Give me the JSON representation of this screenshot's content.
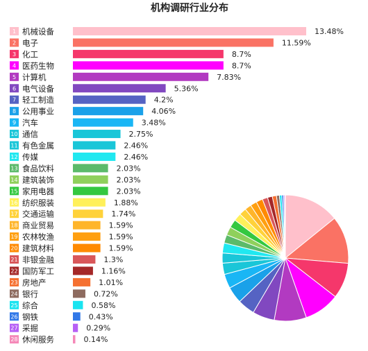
{
  "chart_data": {
    "type": "bar",
    "title": "机构调研行业分布",
    "categories": [
      "机械设备",
      "电子",
      "化工",
      "医药生物",
      "计算机",
      "电气设备",
      "轻工制造",
      "公用事业",
      "汽车",
      "通信",
      "有色金属",
      "传媒",
      "食品饮料",
      "建筑装饰",
      "家用电器",
      "纺织服装",
      "交通运输",
      "商业贸易",
      "农林牧渔",
      "建筑材料",
      "非银金融",
      "国防军工",
      "房地产",
      "银行",
      "综合",
      "钢铁",
      "采掘",
      "休闲服务"
    ],
    "ranks": [
      "1",
      "2",
      "3",
      "4",
      "5",
      "6",
      "7",
      "8",
      "9",
      "10",
      "11",
      "12",
      "13",
      "14",
      "15",
      "16",
      "17",
      "18",
      "19",
      "20",
      "21",
      "22",
      "23",
      "24",
      "25",
      "26",
      "27",
      "28"
    ],
    "values": [
      13.48,
      11.59,
      8.7,
      8.7,
      7.83,
      5.36,
      4.2,
      4.06,
      3.48,
      2.75,
      2.46,
      2.46,
      2.03,
      2.03,
      2.03,
      1.88,
      1.74,
      1.59,
      1.59,
      1.59,
      1.3,
      1.16,
      1.01,
      0.72,
      0.58,
      0.43,
      0.29,
      0.14
    ],
    "value_labels": [
      "13.48%",
      "11.59%",
      "8.7%",
      "8.7%",
      "7.83%",
      "5.36%",
      "4.2%",
      "4.06%",
      "3.48%",
      "2.75%",
      "2.46%",
      "2.46%",
      "2.03%",
      "2.03%",
      "2.03%",
      "1.88%",
      "1.74%",
      "1.59%",
      "1.59%",
      "1.59%",
      "1.3%",
      "1.16%",
      "1.01%",
      "0.72%",
      "0.58%",
      "0.43%",
      "0.29%",
      "0.14%"
    ],
    "colors": [
      "#ffc0cb",
      "#fa7264",
      "#f5376b",
      "#ff00ff",
      "#b23ac1",
      "#8148c0",
      "#5563c3",
      "#1aa1e9",
      "#19b6f5",
      "#1ac6d8",
      "#1ac6d8",
      "#20e8f0",
      "#5bba6a",
      "#8fd05c",
      "#34c840",
      "#fff05a",
      "#ffd23a",
      "#ffb52a",
      "#ff9f10",
      "#ff8a00",
      "#d9575a",
      "#a52828",
      "#f57030",
      "#8e6b5f",
      "#19e4f0",
      "#3178e8",
      "#b660f5",
      "#f588b8"
    ],
    "pie": true
  }
}
